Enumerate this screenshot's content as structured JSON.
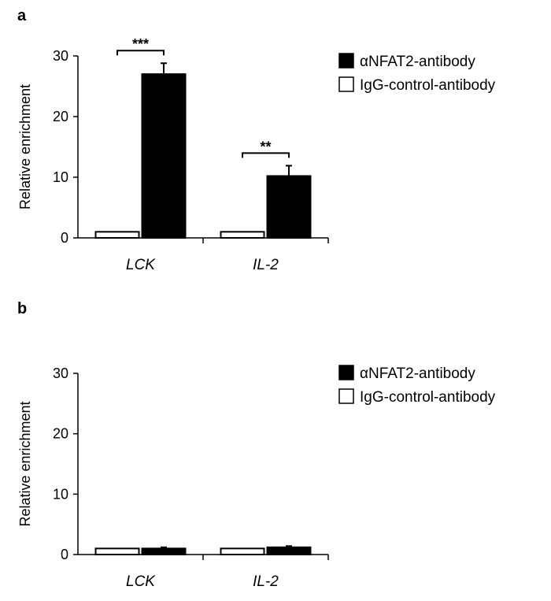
{
  "chart_data": [
    {
      "panel": "a",
      "type": "bar",
      "categories": [
        "LCK",
        "IL-2"
      ],
      "ylabel": "Relative enrichment",
      "ylim": [
        0,
        30
      ],
      "yticks": [
        0,
        10,
        20,
        30
      ],
      "legend_position": "top-right",
      "series": [
        {
          "name": "IgG-control-antibody",
          "values": [
            1,
            1
          ],
          "errors": [
            0,
            0
          ],
          "color": "#ffffff"
        },
        {
          "name": "αNFAT2-antibody",
          "values": [
            27,
            10.2
          ],
          "errors": [
            1.8,
            1.7
          ],
          "color": "#000000"
        }
      ],
      "annotations": [
        {
          "category": "LCK",
          "text": "***"
        },
        {
          "category": "IL-2",
          "text": "**"
        }
      ]
    },
    {
      "panel": "b",
      "type": "bar",
      "categories": [
        "LCK",
        "IL-2"
      ],
      "ylabel": "Relative enrichment",
      "ylim": [
        0,
        30
      ],
      "yticks": [
        0,
        10,
        20,
        30
      ],
      "legend_position": "top-right",
      "series": [
        {
          "name": "IgG-control-antibody",
          "values": [
            1,
            1
          ],
          "errors": [
            0,
            0
          ],
          "color": "#ffffff"
        },
        {
          "name": "αNFAT2-antibody",
          "values": [
            1,
            1.2
          ],
          "errors": [
            0.2,
            0.2
          ],
          "color": "#000000"
        }
      ],
      "annotations": []
    }
  ],
  "legend_order": [
    "αNFAT2-antibody",
    "IgG-control-antibody"
  ]
}
